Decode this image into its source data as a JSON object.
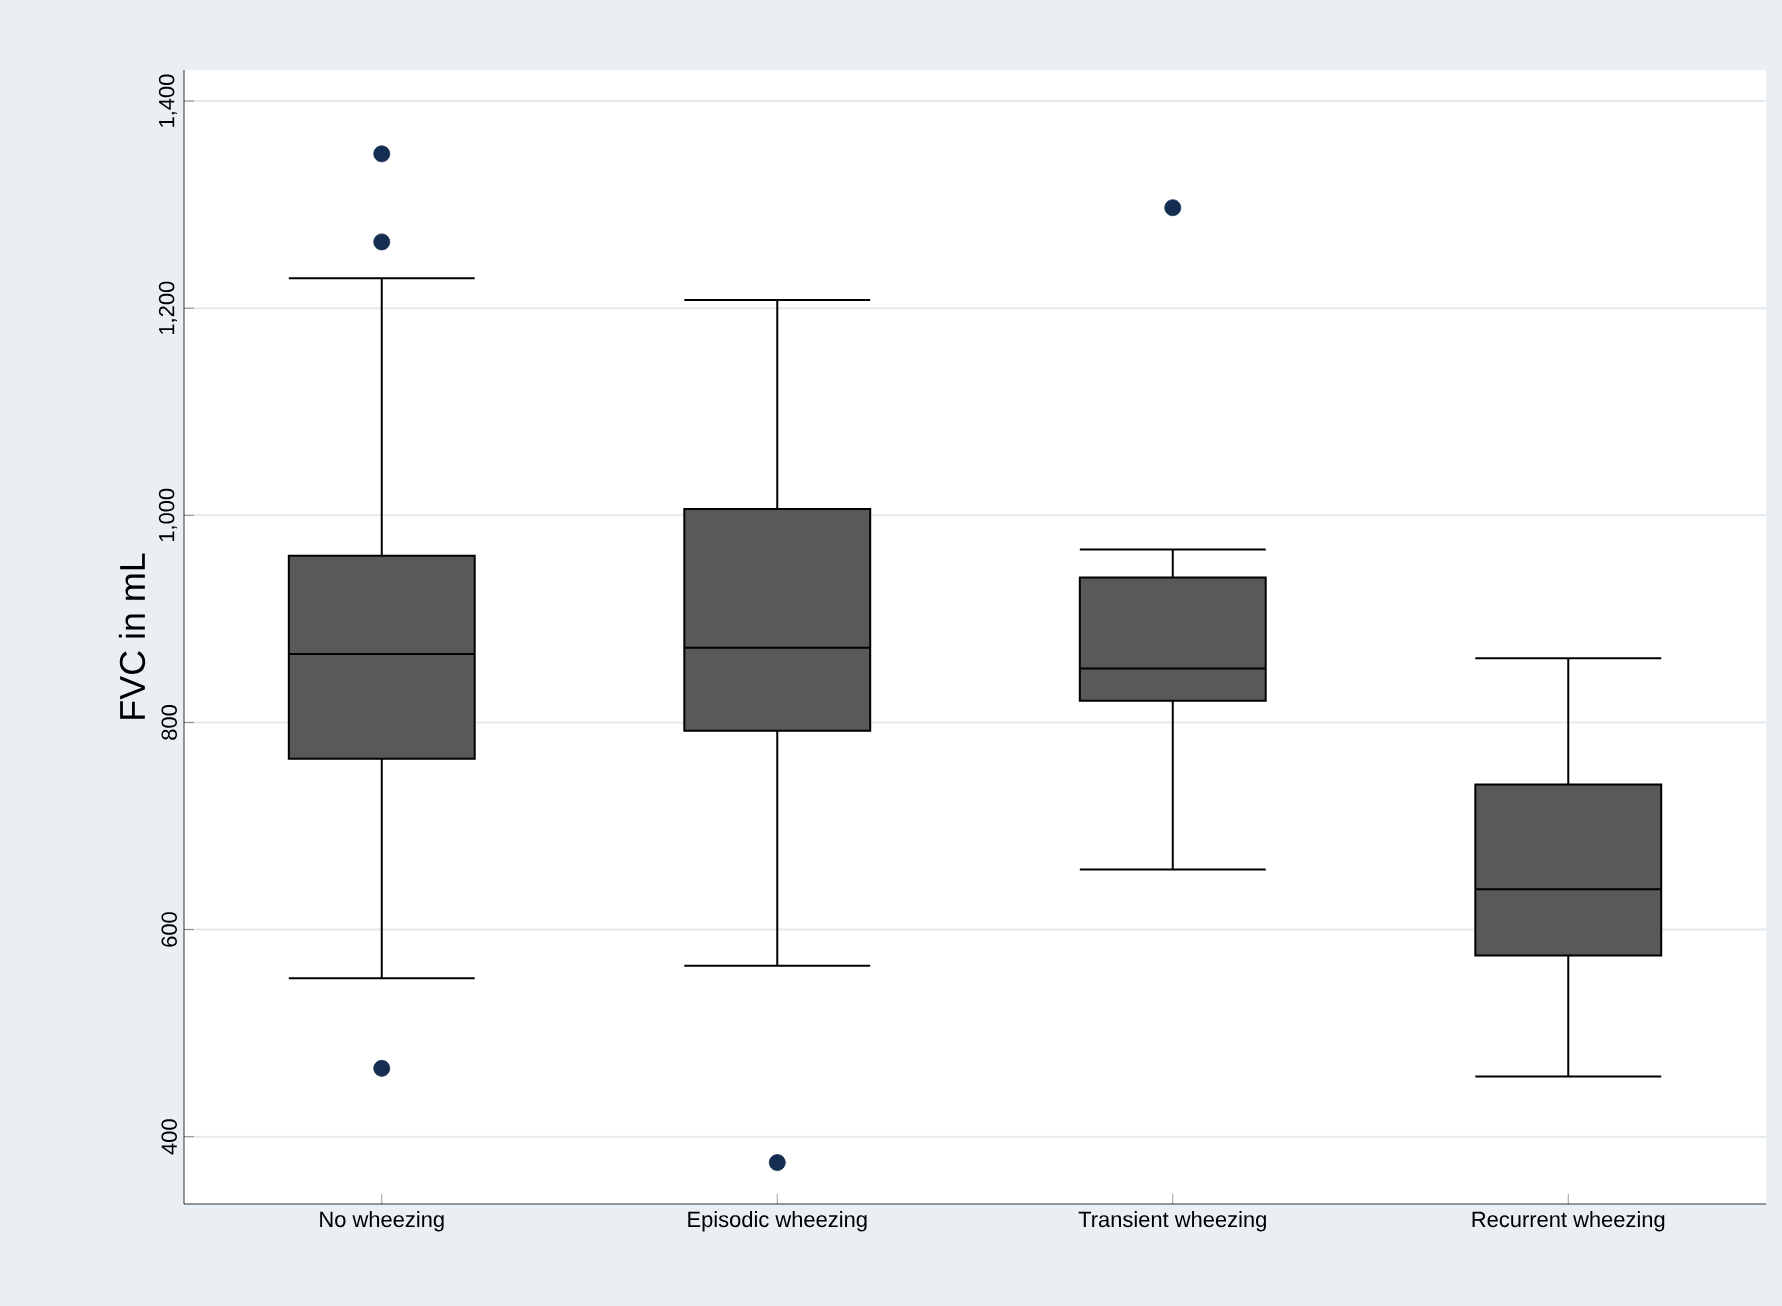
{
  "chart_data": {
    "type": "box",
    "ylabel": "FVC in mL",
    "categories": [
      "No wheezing",
      "Episodic wheezing",
      "Transient wheezing",
      "Recurrent wheezing"
    ],
    "boxes": [
      {
        "low": 553,
        "q1": 765,
        "median": 866,
        "q3": 961,
        "high": 1229,
        "outliers": [
          1349,
          1264,
          466
        ]
      },
      {
        "low": 565,
        "q1": 792,
        "median": 872,
        "q3": 1006,
        "high": 1208,
        "outliers": [
          375
        ]
      },
      {
        "low": 658,
        "q1": 821,
        "median": 852,
        "q3": 940,
        "high": 967,
        "outliers": [
          1297
        ]
      },
      {
        "low": 458,
        "q1": 575,
        "median": 639,
        "q3": 740,
        "high": 862
      }
    ],
    "color": "#595959",
    "ylim": [
      335,
      1430
    ],
    "yticks": [
      {
        "value": 400,
        "label": "400"
      },
      {
        "value": 600,
        "label": "600"
      },
      {
        "value": 800,
        "label": "800"
      },
      {
        "value": 1000,
        "label": "1,000"
      },
      {
        "value": 1200,
        "label": "1,200"
      },
      {
        "value": 1400,
        "label": "1,400"
      }
    ],
    "grid": "y"
  }
}
